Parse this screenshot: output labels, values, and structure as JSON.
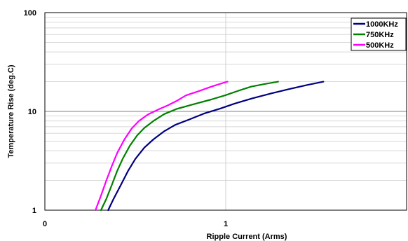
{
  "chart_data": {
    "type": "line",
    "title": "",
    "xlabel": "Ripple Current (Arms)",
    "ylabel": "Temperature Rise (deg.C)",
    "x_scale": "linear",
    "y_scale": "log",
    "xlim": [
      0,
      2
    ],
    "ylim": [
      1,
      100
    ],
    "x_ticks": [
      "0",
      "1"
    ],
    "y_ticks": [
      "1",
      "10",
      "100"
    ],
    "grid": true,
    "legend_position": "top-right",
    "series": [
      {
        "name": "1000KHz",
        "color": "#000080",
        "points": [
          [
            0.35,
            1.0
          ],
          [
            0.38,
            1.3
          ],
          [
            0.42,
            1.8
          ],
          [
            0.46,
            2.5
          ],
          [
            0.5,
            3.3
          ],
          [
            0.55,
            4.3
          ],
          [
            0.6,
            5.2
          ],
          [
            0.66,
            6.3
          ],
          [
            0.72,
            7.3
          ],
          [
            0.8,
            8.3
          ],
          [
            0.88,
            9.5
          ],
          [
            0.97,
            10.7
          ],
          [
            1.05,
            12
          ],
          [
            1.15,
            13.6
          ],
          [
            1.25,
            15.2
          ],
          [
            1.35,
            16.8
          ],
          [
            1.45,
            18.5
          ],
          [
            1.54,
            20
          ]
        ]
      },
      {
        "name": "750KHz",
        "color": "#008000",
        "points": [
          [
            0.31,
            1.0
          ],
          [
            0.34,
            1.3
          ],
          [
            0.37,
            1.8
          ],
          [
            0.4,
            2.5
          ],
          [
            0.43,
            3.3
          ],
          [
            0.47,
            4.5
          ],
          [
            0.51,
            5.7
          ],
          [
            0.55,
            6.8
          ],
          [
            0.6,
            8.0
          ],
          [
            0.66,
            9.4
          ],
          [
            0.73,
            10.6
          ],
          [
            0.82,
            11.8
          ],
          [
            0.92,
            13.2
          ],
          [
            1.0,
            14.6
          ],
          [
            1.07,
            16.2
          ],
          [
            1.14,
            17.8
          ],
          [
            1.22,
            19
          ],
          [
            1.29,
            20
          ]
        ]
      },
      {
        "name": "500KHz",
        "color": "#ff00ff",
        "points": [
          [
            0.28,
            1.0
          ],
          [
            0.31,
            1.4
          ],
          [
            0.34,
            2.0
          ],
          [
            0.37,
            2.8
          ],
          [
            0.4,
            3.8
          ],
          [
            0.44,
            5.2
          ],
          [
            0.48,
            6.7
          ],
          [
            0.52,
            8.0
          ],
          [
            0.57,
            9.3
          ],
          [
            0.63,
            10.5
          ],
          [
            0.68,
            11.5
          ],
          [
            0.73,
            12.8
          ],
          [
            0.78,
            14.5
          ],
          [
            0.85,
            16
          ],
          [
            0.92,
            17.8
          ],
          [
            1.0,
            19.8
          ],
          [
            1.01,
            20
          ]
        ]
      }
    ]
  }
}
